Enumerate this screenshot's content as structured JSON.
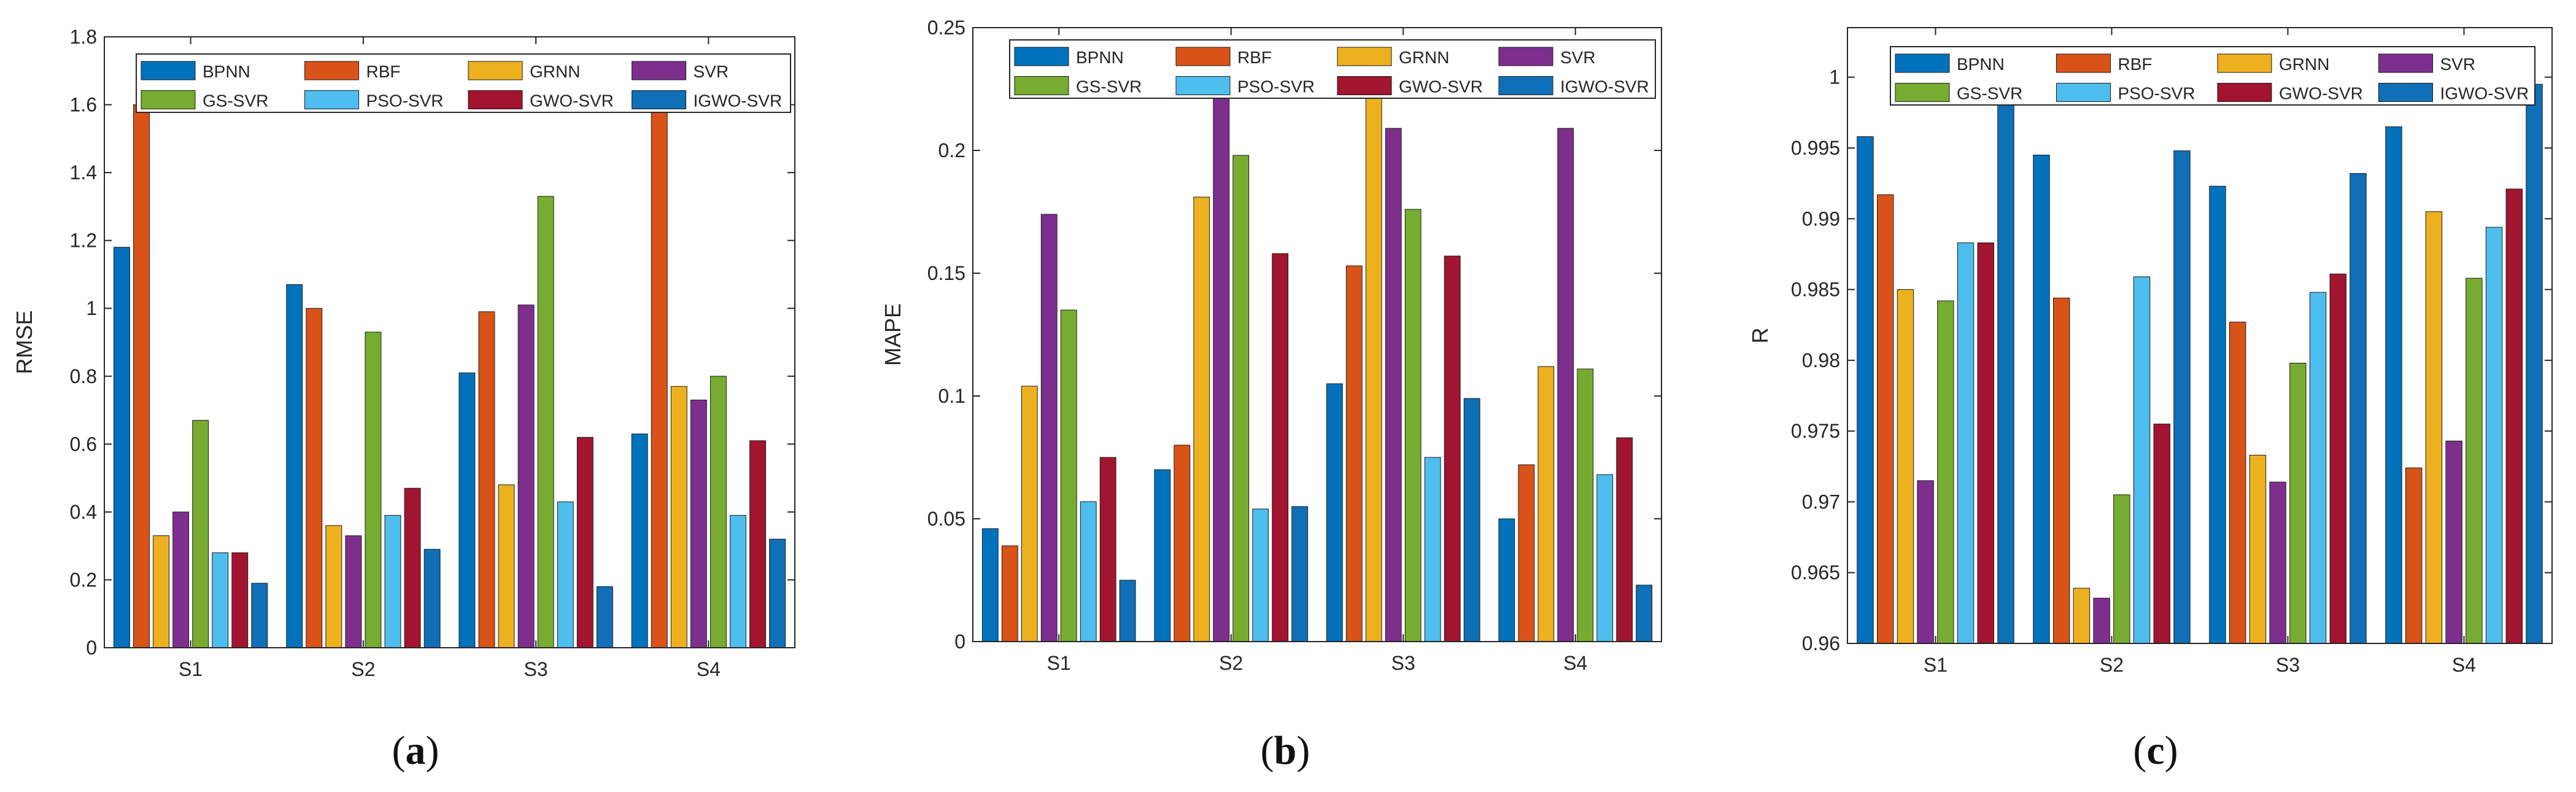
{
  "series_colors": [
    "#0072BD",
    "#D95319",
    "#EDB120",
    "#7E2F8E",
    "#77AC30",
    "#4DBEEE",
    "#A2142F",
    "#0F6FB7"
  ],
  "chart_data": [
    {
      "type": "bar",
      "panel_label": "a",
      "ylabel": "RMSE",
      "categories": [
        "S1",
        "S2",
        "S3",
        "S4"
      ],
      "ylim": [
        0,
        1.8
      ],
      "yticks": [
        0,
        0.2,
        0.4,
        0.6,
        0.8,
        1,
        1.2,
        1.4,
        1.6,
        1.8
      ],
      "yticklabels": [
        "0",
        "0.2",
        "0.4",
        "0.6",
        "0.8",
        "1",
        "1.2",
        "1.4",
        "1.6",
        "1.8"
      ],
      "legend": {
        "placement": "top",
        "columns": 4
      },
      "series": [
        {
          "name": "BPNN",
          "values": [
            1.18,
            1.07,
            0.81,
            0.63
          ]
        },
        {
          "name": "RBF",
          "values": [
            1.6,
            1.0,
            0.99,
            1.6
          ]
        },
        {
          "name": "GRNN",
          "values": [
            0.33,
            0.36,
            0.48,
            0.77
          ]
        },
        {
          "name": "SVR",
          "values": [
            0.4,
            0.33,
            1.01,
            0.73
          ]
        },
        {
          "name": "GS-SVR",
          "values": [
            0.67,
            0.93,
            1.33,
            0.8
          ]
        },
        {
          "name": "PSO-SVR",
          "values": [
            0.28,
            0.39,
            0.43,
            0.39
          ]
        },
        {
          "name": "GWO-SVR",
          "values": [
            0.28,
            0.47,
            0.62,
            0.61
          ]
        },
        {
          "name": "IGWO-SVR",
          "values": [
            0.19,
            0.29,
            0.18,
            0.32
          ]
        }
      ]
    },
    {
      "type": "bar",
      "panel_label": "b",
      "ylabel": "MAPE",
      "categories": [
        "S1",
        "S2",
        "S3",
        "S4"
      ],
      "ylim": [
        0,
        0.25
      ],
      "yticks": [
        0,
        0.05,
        0.1,
        0.15,
        0.2,
        0.25
      ],
      "yticklabels": [
        "0",
        "0.05",
        "0.1",
        "0.15",
        "0.2",
        "0.25"
      ],
      "legend": {
        "placement": "top",
        "columns": 4
      },
      "series": [
        {
          "name": "BPNN",
          "values": [
            0.046,
            0.07,
            0.105,
            0.05
          ]
        },
        {
          "name": "RBF",
          "values": [
            0.039,
            0.08,
            0.153,
            0.072
          ]
        },
        {
          "name": "GRNN",
          "values": [
            0.104,
            0.181,
            0.225,
            0.112
          ]
        },
        {
          "name": "SVR",
          "values": [
            0.174,
            0.225,
            0.209,
            0.209
          ]
        },
        {
          "name": "GS-SVR",
          "values": [
            0.135,
            0.198,
            0.176,
            0.111
          ]
        },
        {
          "name": "PSO-SVR",
          "values": [
            0.057,
            0.054,
            0.075,
            0.068
          ]
        },
        {
          "name": "GWO-SVR",
          "values": [
            0.075,
            0.158,
            0.157,
            0.083
          ]
        },
        {
          "name": "IGWO-SVR",
          "values": [
            0.025,
            0.055,
            0.099,
            0.023
          ]
        }
      ]
    },
    {
      "type": "bar",
      "panel_label": "c",
      "ylabel": "R",
      "categories": [
        "S1",
        "S2",
        "S3",
        "S4"
      ],
      "ylim": [
        0.96,
        1.0035
      ],
      "yticks": [
        0.96,
        0.965,
        0.97,
        0.975,
        0.98,
        0.985,
        0.99,
        0.995,
        1
      ],
      "yticklabels": [
        "0.96",
        "0.965",
        "0.97",
        "0.975",
        "0.98",
        "0.985",
        "0.99",
        "0.995",
        "1"
      ],
      "legend": {
        "placement": "top",
        "columns": 4
      },
      "series": [
        {
          "name": "BPNN",
          "values": [
            0.9958,
            0.9945,
            0.9923,
            0.9965
          ]
        },
        {
          "name": "RBF",
          "values": [
            0.9917,
            0.9844,
            0.9827,
            0.9724
          ]
        },
        {
          "name": "GRNN",
          "values": [
            0.985,
            0.9639,
            0.9733,
            0.9905
          ]
        },
        {
          "name": "SVR",
          "values": [
            0.9715,
            0.9632,
            0.9714,
            0.9743
          ]
        },
        {
          "name": "GS-SVR",
          "values": [
            0.9842,
            0.9705,
            0.9798,
            0.9858
          ]
        },
        {
          "name": "PSO-SVR",
          "values": [
            0.9883,
            0.9859,
            0.9848,
            0.9894
          ]
        },
        {
          "name": "GWO-SVR",
          "values": [
            0.9883,
            0.9755,
            0.9861,
            0.9921
          ]
        },
        {
          "name": "IGWO-SVR",
          "values": [
            0.9983,
            0.9948,
            0.9932,
            0.9995
          ]
        }
      ]
    }
  ]
}
